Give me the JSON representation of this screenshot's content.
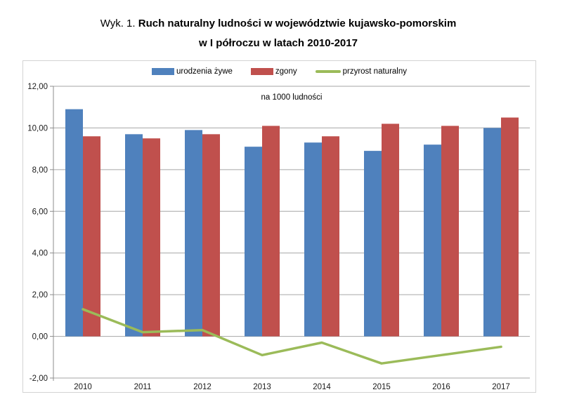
{
  "title": {
    "prefix": "Wyk. 1.",
    "main": "Ruch naturalny ludności w województwie kujawsko-pomorskim",
    "line2": "w I półroczu w latach 2010-2017"
  },
  "chart_data": {
    "type": "bar",
    "subtype": "grouped-bars-with-line-overlay",
    "unit_label": "na 1000 ludności",
    "categories": [
      "2010",
      "2011",
      "2012",
      "2013",
      "2014",
      "2015",
      "2016",
      "2017"
    ],
    "series": [
      {
        "name": "urodzenia żywe",
        "slug": "urodzenia-zywe",
        "type": "bar",
        "color": "#4f81bd",
        "values": [
          10.9,
          9.7,
          9.9,
          9.1,
          9.3,
          8.9,
          9.2,
          10.0
        ]
      },
      {
        "name": "zgony",
        "slug": "zgony",
        "type": "bar",
        "color": "#c0504d",
        "values": [
          9.6,
          9.5,
          9.7,
          10.1,
          9.6,
          10.2,
          10.1,
          10.5
        ]
      },
      {
        "name": "przyrost naturalny",
        "slug": "przyrost-naturalny",
        "type": "line",
        "color": "#9bbb59",
        "values": [
          1.3,
          0.2,
          0.3,
          -0.9,
          -0.3,
          -1.3,
          -0.9,
          -0.5
        ]
      }
    ],
    "ylim": [
      -2,
      12
    ],
    "yticks": [
      {
        "label": "12,00",
        "value": 12
      },
      {
        "label": "10,00",
        "value": 10
      },
      {
        "label": "8,00",
        "value": 8
      },
      {
        "label": "6,00",
        "value": 6
      },
      {
        "label": "4,00",
        "value": 4
      },
      {
        "label": "2,00",
        "value": 2
      },
      {
        "label": "0,00",
        "value": 0
      },
      {
        "label": "-2,00",
        "value": -2
      }
    ],
    "grid": true,
    "legend_position": "top-center"
  },
  "colors": {
    "births_bar": "#4f81bd",
    "deaths_bar": "#c0504d",
    "natural_increase_line": "#9bbb59",
    "gridline": "#a6a6a6",
    "axis": "#8c8c8c",
    "text": "#1a1a1a",
    "chart_border": "#d3d3d3",
    "background": "#ffffff"
  }
}
